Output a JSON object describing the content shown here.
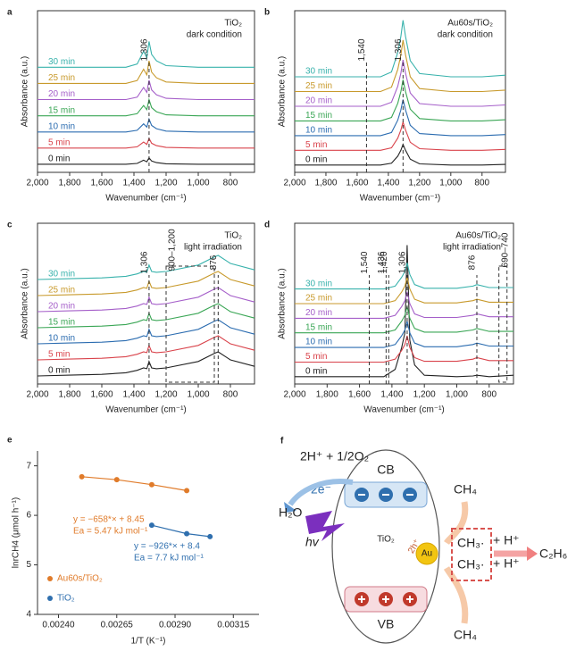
{
  "chart_data": [
    {
      "type": "line",
      "panel": "a",
      "title": "TiO₂",
      "subtitle": "dark condition",
      "xlabel": "Wavenumber (cm⁻¹)",
      "ylabel": "Absorbance (a.u.)",
      "xlim": [
        2000,
        650
      ],
      "ylim": [
        0,
        10
      ],
      "xticks": [
        {
          "value": 2000,
          "label": "2,000"
        },
        {
          "value": 1800,
          "label": "1,800"
        },
        {
          "value": 1600,
          "label": "1,600"
        },
        {
          "value": 1400,
          "label": "1,400"
        },
        {
          "value": 1200,
          "label": "1,200"
        },
        {
          "value": 1000,
          "label": "1,000"
        },
        800
      ],
      "x": [
        2000,
        1800,
        1600,
        1450,
        1380,
        1340,
        1320,
        1306,
        1290,
        1260,
        1200,
        1000,
        900,
        876,
        800,
        650
      ],
      "series": [
        {
          "name": "0 min",
          "color": "#222222",
          "values": [
            0.5,
            0.5,
            0.5,
            0.5,
            0.55,
            0.75,
            0.65,
            0.9,
            0.7,
            0.6,
            0.53,
            0.5,
            0.5,
            0.5,
            0.5,
            0.5
          ]
        },
        {
          "name": "5 min",
          "color": "#d9434b",
          "values": [
            1.5,
            1.5,
            1.5,
            1.5,
            1.58,
            1.88,
            1.73,
            2.1,
            1.8,
            1.65,
            1.54,
            1.5,
            1.5,
            1.5,
            1.5,
            1.5
          ]
        },
        {
          "name": "10 min",
          "color": "#2b6cb0",
          "values": [
            2.5,
            2.5,
            2.5,
            2.5,
            2.6,
            3,
            2.8,
            3.3,
            2.9,
            2.7,
            2.55,
            2.5,
            2.5,
            2.5,
            2.5,
            2.5
          ]
        },
        {
          "name": "15 min",
          "color": "#3aa655",
          "values": [
            3.5,
            3.5,
            3.5,
            3.5,
            3.63,
            4.13,
            3.88,
            4.5,
            4,
            3.75,
            3.56,
            3.5,
            3.5,
            3.5,
            3.5,
            3.5
          ]
        },
        {
          "name": "20 min",
          "color": "#a55fc9",
          "values": [
            4.5,
            4.5,
            4.5,
            4.5,
            4.65,
            5.25,
            4.95,
            5.7,
            5.1,
            4.8,
            4.58,
            4.5,
            4.5,
            4.5,
            4.5,
            4.5
          ]
        },
        {
          "name": "25 min",
          "color": "#c89a2c",
          "values": [
            5.5,
            5.5,
            5.5,
            5.5,
            5.68,
            6.38,
            6.03,
            6.9,
            6.2,
            5.85,
            5.59,
            5.5,
            5.5,
            5.5,
            5.5,
            5.5
          ]
        },
        {
          "name": "30 min",
          "color": "#38b2ac",
          "values": [
            6.5,
            6.5,
            6.5,
            6.5,
            6.7,
            7.5,
            7.1,
            8.1,
            7.3,
            6.9,
            6.6,
            6.5,
            6.5,
            6.5,
            6.5,
            6.5
          ]
        }
      ],
      "annotations": [
        {
          "text": "1,306",
          "x": 1306
        }
      ]
    },
    {
      "type": "line",
      "panel": "b",
      "title": "Au60s/TiO₂",
      "subtitle": "dark condition",
      "xlabel": "Wavenumber (cm⁻¹)",
      "ylabel": "Absorbance (a.u.)",
      "xlim": [
        2000,
        650
      ],
      "ylim": [
        0,
        11
      ],
      "xticks": [
        {
          "value": 2000,
          "label": "2,000"
        },
        {
          "value": 1800,
          "label": "1,800"
        },
        {
          "value": 1600,
          "label": "1,600"
        },
        {
          "value": 1400,
          "label": "1,400"
        },
        {
          "value": 1200,
          "label": "1,200"
        },
        {
          "value": 1000,
          "label": "1,000"
        },
        800
      ],
      "x": [
        2000,
        1800,
        1600,
        1450,
        1380,
        1340,
        1320,
        1306,
        1290,
        1260,
        1200,
        1000,
        900,
        876,
        800,
        650
      ],
      "series": [
        {
          "name": "0 min",
          "color": "#222222",
          "values": [
            0.5,
            0.5,
            0.5,
            0.5,
            0.62,
            1.1,
            1.5,
            1.9,
            1.5,
            0.9,
            0.58,
            0.5,
            0.5,
            0.5,
            0.5,
            0.54
          ]
        },
        {
          "name": "5 min",
          "color": "#d9434b",
          "values": [
            1.5,
            1.5,
            1.5,
            1.5,
            1.67,
            2.33,
            2.88,
            3.43,
            2.88,
            2.05,
            1.61,
            1.5,
            1.5,
            1.5,
            1.5,
            1.56
          ]
        },
        {
          "name": "10 min",
          "color": "#2b6cb0",
          "values": [
            2.5,
            2.5,
            2.5,
            2.5,
            2.71,
            3.55,
            4.25,
            4.95,
            4.25,
            3.2,
            2.64,
            2.5,
            2.5,
            2.5,
            2.5,
            2.57
          ]
        },
        {
          "name": "15 min",
          "color": "#3aa655",
          "values": [
            3.5,
            3.5,
            3.5,
            3.5,
            3.74,
            4.7,
            5.5,
            6.3,
            5.5,
            4.3,
            3.66,
            3.5,
            3.5,
            3.5,
            3.5,
            3.58
          ]
        },
        {
          "name": "20 min",
          "color": "#a55fc9",
          "values": [
            4.5,
            4.5,
            4.5,
            4.5,
            4.77,
            5.85,
            6.75,
            7.65,
            6.75,
            5.4,
            4.68,
            4.5,
            4.5,
            4.5,
            4.5,
            4.59
          ]
        },
        {
          "name": "25 min",
          "color": "#c89a2c",
          "values": [
            5.5,
            5.5,
            5.5,
            5.5,
            5.8,
            7,
            8,
            9,
            8,
            6.5,
            5.7,
            5.5,
            5.5,
            5.5,
            5.5,
            5.6
          ]
        },
        {
          "name": "30 min",
          "color": "#38b2ac",
          "values": [
            6.5,
            6.5,
            6.5,
            6.5,
            6.83,
            8.15,
            9.25,
            10.35,
            9.25,
            7.6,
            6.72,
            6.5,
            6.5,
            6.5,
            6.5,
            6.61
          ]
        }
      ],
      "annotations": [
        {
          "text": "1,540",
          "x": 1540
        },
        {
          "text": "1,306",
          "x": 1306
        }
      ]
    },
    {
      "type": "line",
      "panel": "c",
      "title": "TiO₂",
      "subtitle": "light irradiation",
      "xlabel": "Wavenumber (cm⁻¹)",
      "ylabel": "Absorbance (a.u.)",
      "xlim": [
        2000,
        650
      ],
      "ylim": [
        0,
        10
      ],
      "xticks": [
        {
          "value": 2000,
          "label": "2,000"
        },
        {
          "value": 1800,
          "label": "1,800"
        },
        {
          "value": 1600,
          "label": "1,600"
        },
        {
          "value": 1400,
          "label": "1,400"
        },
        {
          "value": 1200,
          "label": "1,200"
        },
        {
          "value": 1000,
          "label": "1,000"
        },
        800
      ],
      "x": [
        2000,
        1800,
        1600,
        1450,
        1380,
        1340,
        1320,
        1306,
        1290,
        1260,
        1200,
        1000,
        900,
        876,
        800,
        650
      ],
      "series": [
        {
          "name": "0 min",
          "color": "#222222",
          "values": [
            0.5,
            0.55,
            0.6,
            0.7,
            0.85,
            1,
            0.95,
            1.4,
            1,
            0.95,
            1,
            1.4,
            1.9,
            2,
            1.5,
            1.1
          ]
        },
        {
          "name": "5 min",
          "color": "#d9434b",
          "values": [
            1.5,
            1.55,
            1.6,
            1.7,
            1.85,
            2,
            1.95,
            2.4,
            2,
            1.95,
            2,
            2.4,
            2.9,
            3,
            2.5,
            2.1
          ]
        },
        {
          "name": "10 min",
          "color": "#2b6cb0",
          "values": [
            2.5,
            2.55,
            2.6,
            2.7,
            2.85,
            3,
            2.95,
            3.4,
            3,
            2.95,
            3,
            3.4,
            3.9,
            4,
            3.5,
            3.1
          ]
        },
        {
          "name": "15 min",
          "color": "#3aa655",
          "values": [
            3.5,
            3.55,
            3.6,
            3.7,
            3.85,
            4,
            3.95,
            4.4,
            4,
            3.95,
            4,
            4.4,
            4.9,
            5,
            4.5,
            4.1
          ]
        },
        {
          "name": "20 min",
          "color": "#a55fc9",
          "values": [
            4.5,
            4.55,
            4.6,
            4.7,
            4.85,
            5,
            4.95,
            5.4,
            5,
            4.95,
            5,
            5.4,
            5.9,
            6,
            5.5,
            5.1
          ]
        },
        {
          "name": "25 min",
          "color": "#c89a2c",
          "values": [
            5.5,
            5.55,
            5.6,
            5.7,
            5.85,
            6,
            5.95,
            6.4,
            6,
            5.95,
            6,
            6.4,
            6.9,
            7,
            6.5,
            6.1
          ]
        },
        {
          "name": "30 min",
          "color": "#38b2ac",
          "values": [
            6.5,
            6.55,
            6.6,
            6.7,
            6.85,
            7,
            6.95,
            7.4,
            7,
            6.95,
            7,
            7.4,
            7.9,
            8,
            7.5,
            7.1
          ]
        }
      ],
      "annotations": [
        {
          "text": "1,306",
          "x": 1306
        },
        {
          "text": "900–1,200",
          "range": [
            900,
            1200
          ]
        },
        {
          "text": "876",
          "x": 876
        }
      ]
    },
    {
      "type": "line",
      "panel": "d",
      "title": "Au60s/TiO₂",
      "subtitle": "light irradiation",
      "xlabel": "Wavenumber (cm⁻¹)",
      "ylabel": "Absorbance (a.u.)",
      "xlim": [
        2000,
        650
      ],
      "ylim": [
        0,
        11
      ],
      "xticks": [
        {
          "value": 2000,
          "label": "2,000"
        },
        {
          "value": 1800,
          "label": "1,800"
        },
        {
          "value": 1600,
          "label": "1,600"
        },
        {
          "value": 1400,
          "label": "1,400"
        },
        {
          "value": 1200,
          "label": "1,200"
        },
        {
          "value": 1000,
          "label": "1,000"
        },
        800
      ],
      "x": [
        2000,
        1800,
        1600,
        1450,
        1380,
        1340,
        1320,
        1306,
        1290,
        1260,
        1200,
        1000,
        900,
        876,
        800,
        650
      ],
      "series": [
        {
          "name": "0 min",
          "color": "#222222",
          "values": [
            0.5,
            0.5,
            0.5,
            0.5,
            1,
            2.5,
            3.5,
            9.5,
            3,
            1.3,
            0.6,
            0.5,
            0.55,
            0.6,
            0.5,
            0.6
          ]
        },
        {
          "name": "5 min",
          "color": "#d9434b",
          "values": [
            1.5,
            1.5,
            1.5,
            1.5,
            1.7,
            2.3,
            2.7,
            3.3,
            2.5,
            1.8,
            1.55,
            1.55,
            1.7,
            1.8,
            1.6,
            1.6
          ]
        },
        {
          "name": "10 min",
          "color": "#2b6cb0",
          "values": [
            2.5,
            2.5,
            2.5,
            2.5,
            2.7,
            3.3,
            3.7,
            4.3,
            3.5,
            2.8,
            2.55,
            2.55,
            2.7,
            2.8,
            2.6,
            2.6
          ]
        },
        {
          "name": "15 min",
          "color": "#3aa655",
          "values": [
            3.5,
            3.5,
            3.5,
            3.5,
            3.7,
            4.3,
            4.7,
            5.3,
            4.5,
            3.8,
            3.55,
            3.55,
            3.7,
            3.8,
            3.6,
            3.6
          ]
        },
        {
          "name": "20 min",
          "color": "#a55fc9",
          "values": [
            4.5,
            4.5,
            4.5,
            4.5,
            4.7,
            5.3,
            5.7,
            6.3,
            5.5,
            4.8,
            4.55,
            4.55,
            4.7,
            4.8,
            4.6,
            4.6
          ]
        },
        {
          "name": "25 min",
          "color": "#c89a2c",
          "values": [
            5.5,
            5.5,
            5.5,
            5.5,
            5.7,
            6.3,
            6.7,
            7.3,
            6.5,
            5.8,
            5.55,
            5.55,
            5.7,
            5.8,
            5.6,
            5.6
          ]
        },
        {
          "name": "30 min",
          "color": "#38b2ac",
          "values": [
            6.5,
            6.5,
            6.5,
            6.5,
            6.7,
            7.3,
            7.7,
            8.3,
            7.5,
            6.8,
            6.55,
            6.55,
            6.7,
            6.8,
            6.6,
            6.6
          ]
        }
      ],
      "annotations": [
        {
          "text": "1,540",
          "x": 1540
        },
        {
          "text": "1,436",
          "x": 1436
        },
        {
          "text": "1,420",
          "x": 1420
        },
        {
          "text": "1,306",
          "x": 1306
        },
        {
          "text": "876",
          "x": 876
        },
        {
          "text": "690–740",
          "range": [
            690,
            740
          ]
        }
      ]
    },
    {
      "type": "scatter",
      "panel": "e",
      "xlabel": "1/T (K⁻¹)",
      "ylabel": "lnrCH4 (μmol h⁻¹)",
      "xlim": [
        0.00231,
        0.00326
      ],
      "ylim": [
        4,
        7.3
      ],
      "xticks": [
        {
          "value": 0.0024,
          "label": "0.00240"
        },
        {
          "value": 0.00265,
          "label": "0.00265"
        },
        {
          "value": 0.0029,
          "label": "0.00290"
        },
        {
          "value": 0.00315,
          "label": "0.00315"
        }
      ],
      "yticks": [
        4,
        5,
        6,
        7
      ],
      "series": [
        {
          "name": "Au60s/TiO₂",
          "color": "#e07b2a",
          "x": [
            0.0025,
            0.00265,
            0.0028,
            0.00295
          ],
          "values": [
            6.78,
            6.72,
            6.62,
            6.5
          ],
          "equation": "y = −658*× + 8.45",
          "ea": "Ea = 5.47 kJ mol⁻¹"
        },
        {
          "name": "TiO₂",
          "color": "#2f6fae",
          "x": [
            0.0028,
            0.00295,
            0.00305
          ],
          "values": [
            5.8,
            5.63,
            5.57
          ],
          "equation": "y = −926*× + 8.4",
          "ea": "Ea = 7.7 kJ mol⁻¹"
        }
      ]
    }
  ],
  "diagram": {
    "panel": "f",
    "reactants": "2H⁺ + 1/2O₂",
    "electrons": "2e⁻",
    "water": "H₂O",
    "light": "hv",
    "cb": "CB",
    "semiconductor": "TiO₂",
    "vb": "VB",
    "holes": "2h⁺",
    "metal": "Au",
    "methane_top": "CH₄",
    "methane_bottom": "CH₄",
    "methyl_1": "CH₃·",
    "methyl_2": "CH₃·",
    "proton_1": "+ H⁺",
    "proton_2": "+ H⁺",
    "product": "C₂H₆"
  }
}
